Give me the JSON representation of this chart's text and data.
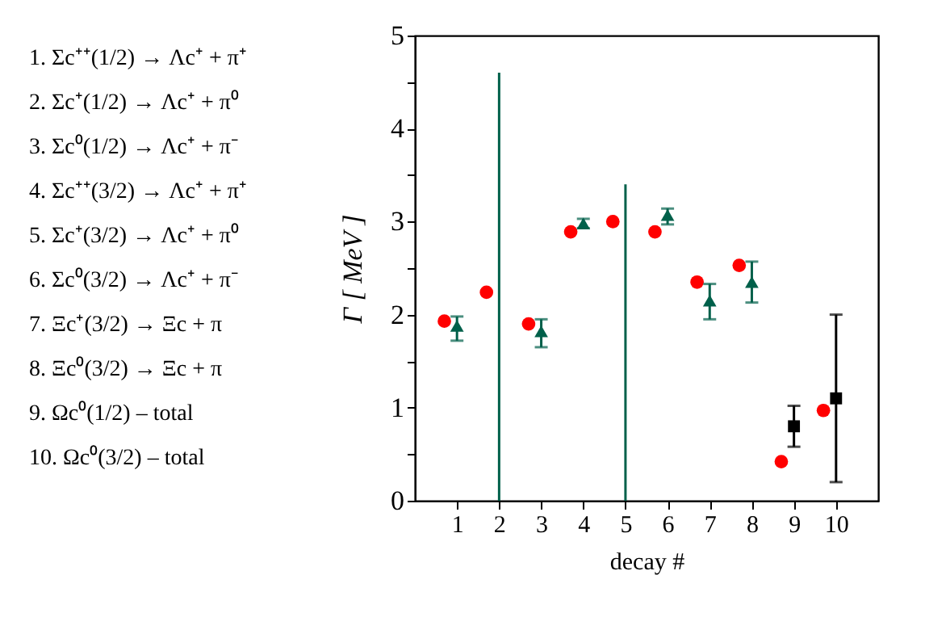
{
  "chart_data": {
    "type": "scatter",
    "xlabel": "decay #",
    "ylabel": "Γ [ MeV ]",
    "xlim": [
      0,
      11
    ],
    "xticks": [
      1,
      2,
      3,
      4,
      5,
      6,
      7,
      8,
      9,
      10
    ],
    "ylim": [
      0,
      5
    ],
    "yticks": [
      0,
      {
        "value": 0.5,
        "label": null
      },
      1,
      {
        "value": 1.5,
        "label": null
      },
      2,
      {
        "value": 2.5,
        "label": null
      },
      3,
      {
        "value": 3.5,
        "label": null
      },
      4,
      {
        "value": 4.5,
        "label": null
      },
      5
    ],
    "grid": false,
    "legend": false,
    "series": [
      {
        "color": "#ff0000",
        "marker": "circle",
        "x": [
          0.7,
          1.7,
          2.7,
          3.7,
          4.7,
          5.7,
          6.7,
          7.7,
          8.7,
          9.7
        ],
        "values": [
          1.93,
          2.24,
          1.9,
          2.89,
          3.0,
          2.89,
          2.35,
          2.53,
          0.42,
          0.97
        ]
      },
      {
        "color": "#00604a",
        "marker": "triangle",
        "x": [
          1,
          3,
          4,
          6,
          7,
          8
        ],
        "values": [
          1.88,
          1.82,
          2.98,
          3.07,
          2.15,
          2.35
        ],
        "errors": [
          [
            1.72,
            1.98
          ],
          [
            1.65,
            1.95
          ],
          [
            2.93,
            3.03
          ],
          [
            2.97,
            3.14
          ],
          [
            1.95,
            2.33
          ],
          [
            2.13,
            2.57
          ]
        ]
      },
      {
        "type": "bar",
        "color": "#00604a",
        "x": [
          2,
          5
        ],
        "base": [
          0,
          0
        ],
        "values": [
          4.6,
          3.4
        ]
      },
      {
        "color": "#000000",
        "marker": "square",
        "x": [
          9,
          10
        ],
        "values": [
          0.8,
          1.1
        ],
        "errors": [
          [
            0.58,
            1.02
          ],
          [
            0.2,
            2.0
          ]
        ]
      }
    ],
    "annotations": [
      "1. Σc⁺⁺(1/2)  → Λc⁺ + π⁺",
      "2. Σc⁺(1/2)  → Λc⁺ + π⁰",
      "3. Σc⁰(1/2)  → Λc⁺ + π⁻",
      "4. Σc⁺⁺(3/2)  → Λc⁺ + π⁺",
      "5. Σc⁺(3/2)  → Λc⁺ + π⁰",
      "6. Σc⁰(3/2)  → Λc⁺ + π⁻",
      "7. Ξc⁺(3/2)  → Ξc + π",
      "8. Ξc⁰(3/2)  → Ξc + π",
      "9. Ωc⁰(1/2) –   total",
      "10. Ωc⁰(3/2) –   total"
    ]
  }
}
